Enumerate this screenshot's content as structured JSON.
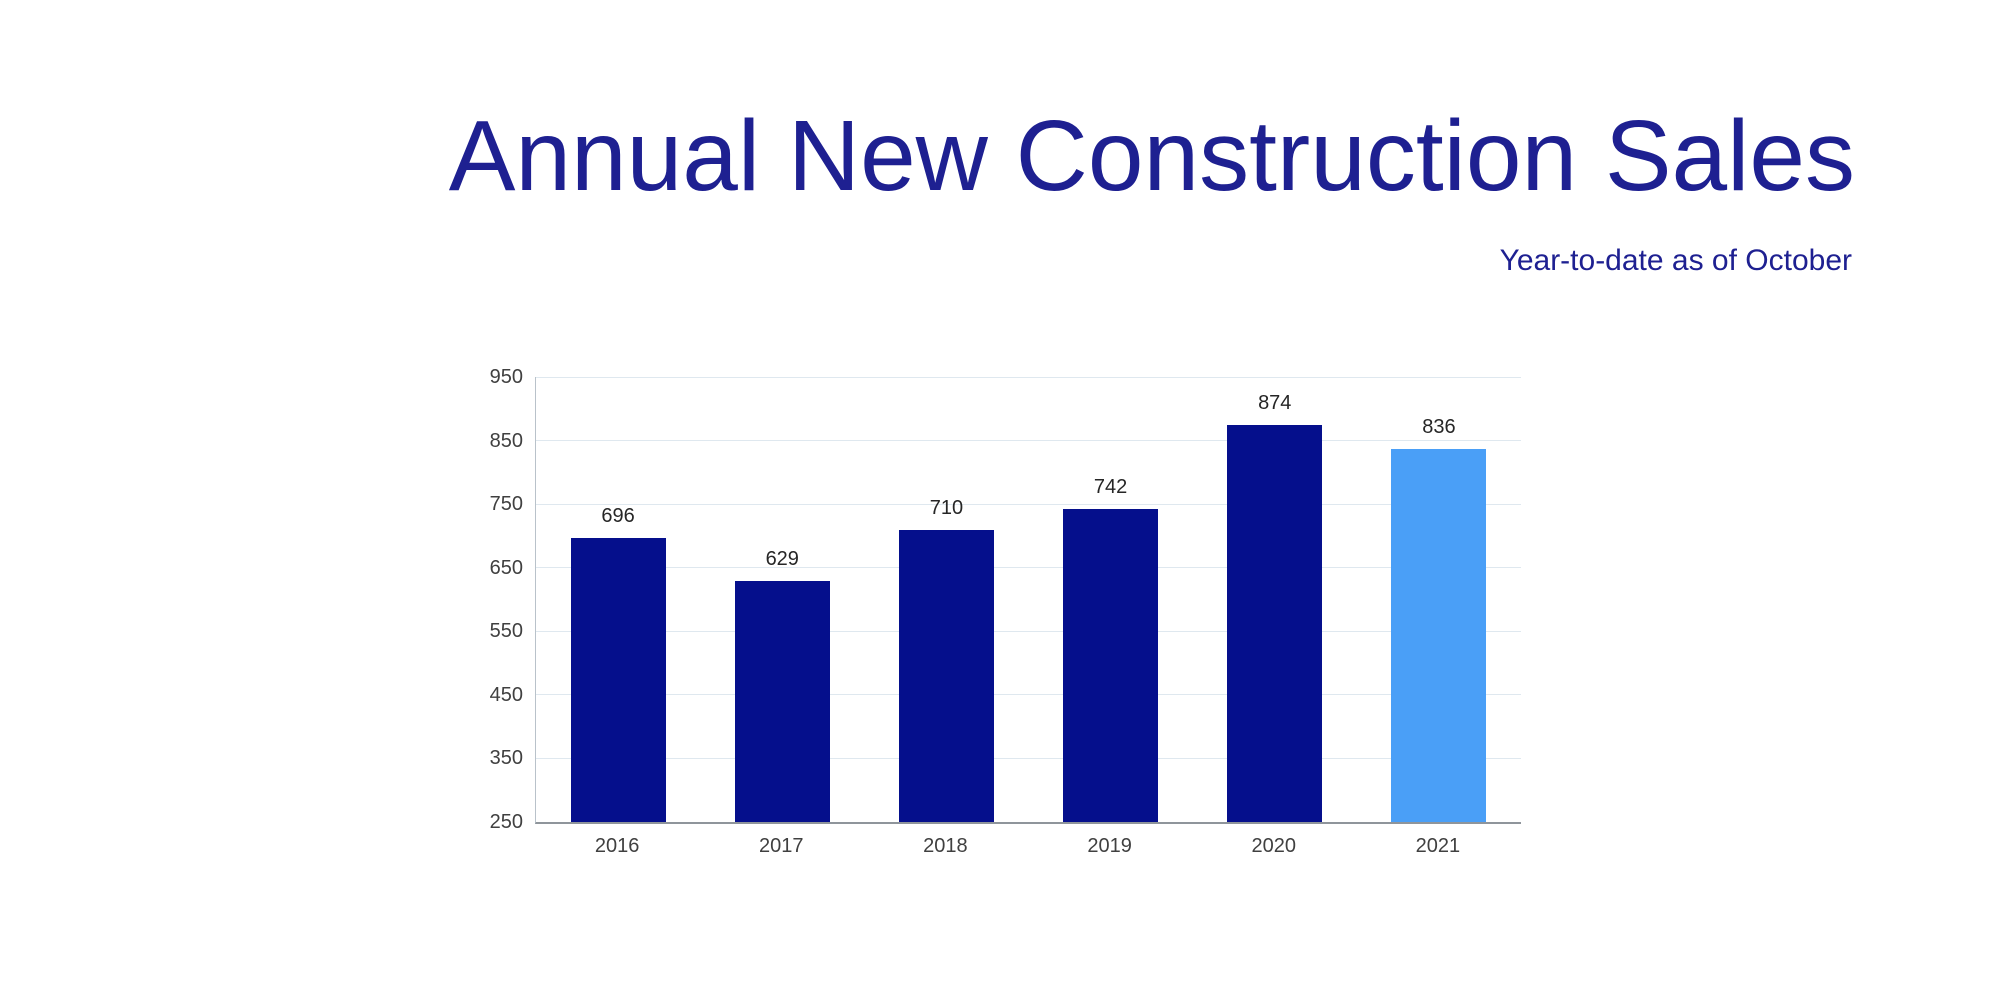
{
  "header": {
    "title": "Annual New Construction Sales",
    "subtitle": "Year-to-date as of October",
    "title_color": "#1e2091"
  },
  "chart_data": {
    "type": "bar",
    "title": "Annual New Construction Sales",
    "subtitle": "Year-to-date as of October",
    "categories": [
      "2016",
      "2017",
      "2018",
      "2019",
      "2020",
      "2021"
    ],
    "values": [
      696,
      629,
      710,
      742,
      874,
      836
    ],
    "bar_colors": [
      "#050f8c",
      "#050f8c",
      "#050f8c",
      "#050f8c",
      "#050f8c",
      "#4a9ff7"
    ],
    "highlight_index": 5,
    "highlight_category": "2021",
    "value_labels_shown": true,
    "ylim": [
      250,
      950
    ],
    "yticks": [
      250,
      350,
      450,
      550,
      650,
      750,
      850,
      950
    ],
    "ytick_interval": 100,
    "xlabel": "",
    "ylabel": "",
    "grid": true,
    "legend": "none",
    "palette": {
      "bar_navy": "#050f8c",
      "bar_highlight_blue": "#4a9ff7",
      "gridline": "#dfe8ef",
      "y_axis_line": "#b9c2ca",
      "x_axis_line": "#8f959b",
      "tick_label": "#404040",
      "value_label": "#262626",
      "title_navy": "#1e2091",
      "background": "#ffffff"
    }
  }
}
